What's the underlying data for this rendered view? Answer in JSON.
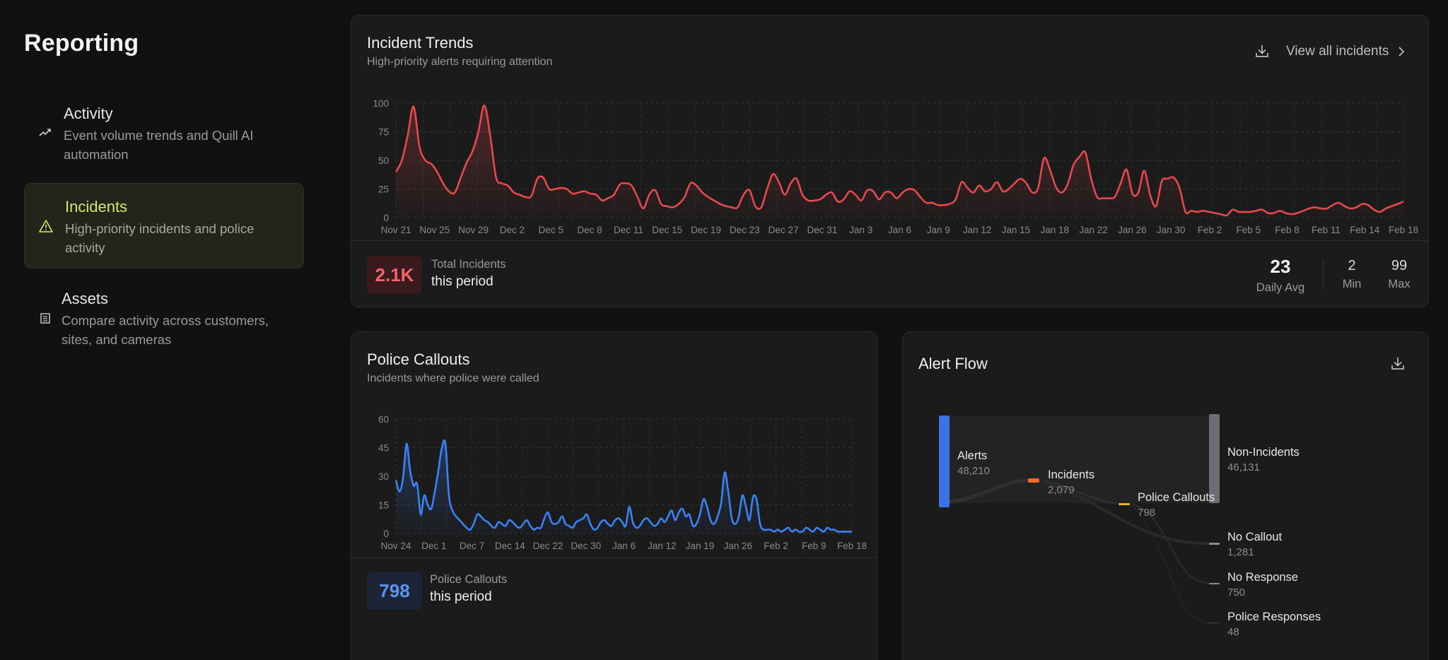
{
  "sidebar": {
    "title": "Reporting",
    "items": [
      {
        "title": "Activity",
        "desc": "Event volume trends and Quill AI automation",
        "icon": "trend-up-icon"
      },
      {
        "title": "Incidents",
        "desc": "High-priority incidents and police activity",
        "icon": "warning-icon",
        "active": true
      },
      {
        "title": "Assets",
        "desc": "Compare activity across customers, sites, and cameras",
        "icon": "building-icon"
      }
    ]
  },
  "incident_trends": {
    "title": "Incident Trends",
    "subtitle": "High-priority alerts requiring attention",
    "view_all": "View all incidents",
    "total_value": "2.1K",
    "total_label": "Total Incidents",
    "total_period": "this period",
    "daily_avg": "23",
    "daily_avg_label": "Daily Avg",
    "min": "2",
    "min_label": "Min",
    "max": "99",
    "max_label": "Max",
    "color": "#e5484d"
  },
  "police_callouts": {
    "title": "Police Callouts",
    "subtitle": "Incidents where police were called",
    "total_value": "798",
    "total_label": "Police Callouts",
    "total_period": "this period",
    "color": "#3b82f6"
  },
  "alert_flow": {
    "title": "Alert Flow",
    "nodes": [
      {
        "label": "Alerts",
        "value": "48,210",
        "color": "#3b73e0"
      },
      {
        "label": "Incidents",
        "value": "2,079",
        "color": "#f06a28"
      },
      {
        "label": "Police Callouts",
        "value": "798",
        "color": "#e6b422"
      },
      {
        "label": "Non-Incidents",
        "value": "46,131",
        "color": "#6b6e75"
      },
      {
        "label": "No Callout",
        "value": "1,281",
        "color": "#8a8a8a"
      },
      {
        "label": "No Response",
        "value": "750",
        "color": "#8a8a8a"
      },
      {
        "label": "Police Responses",
        "value": "48",
        "color": "#555555"
      }
    ]
  },
  "chart_data": [
    {
      "type": "area",
      "title": "Incident Trends",
      "ylim": [
        0,
        100
      ],
      "yticks": [
        0,
        25,
        50,
        75,
        100
      ],
      "xticks": [
        "Nov 21",
        "Nov 25",
        "Nov 29",
        "Dec 2",
        "Dec 5",
        "Dec 8",
        "Dec 11",
        "Dec 15",
        "Dec 19",
        "Dec 23",
        "Dec 27",
        "Dec 31",
        "Jan 3",
        "Jan 6",
        "Jan 9",
        "Jan 12",
        "Jan 15",
        "Jan 18",
        "Jan 22",
        "Jan 26",
        "Jan 30",
        "Feb 2",
        "Feb 5",
        "Feb 8",
        "Feb 11",
        "Feb 14",
        "Feb 18"
      ],
      "grid": true,
      "values": [
        40,
        50,
        72,
        97,
        62,
        50,
        47,
        40,
        30,
        23,
        22,
        35,
        48,
        58,
        75,
        98,
        72,
        35,
        30,
        28,
        22,
        20,
        18,
        19,
        34,
        35,
        25,
        25,
        26,
        25,
        21,
        22,
        23,
        21,
        20,
        15,
        17,
        20,
        29,
        30,
        28,
        18,
        8,
        20,
        24,
        12,
        10,
        9,
        12,
        18,
        30,
        28,
        22,
        18,
        15,
        12,
        10,
        9,
        9,
        20,
        24,
        10,
        9,
        25,
        38,
        31,
        20,
        30,
        34,
        20,
        15,
        15,
        16,
        20,
        22,
        14,
        16,
        23,
        20,
        15,
        24,
        23,
        16,
        22,
        22,
        17,
        22,
        25,
        24,
        18,
        13,
        13,
        11,
        11,
        12,
        16,
        31,
        26,
        22,
        28,
        23,
        25,
        31,
        23,
        25,
        30,
        34,
        30,
        22,
        26,
        52,
        42,
        27,
        22,
        29,
        46,
        53,
        57,
        34,
        18,
        17,
        17,
        18,
        30,
        42,
        21,
        22,
        41,
        20,
        10,
        32,
        34,
        35,
        26,
        5,
        6,
        5,
        6,
        5,
        4,
        3,
        2,
        7,
        5,
        5,
        5,
        6,
        7,
        4,
        4,
        6,
        4,
        3,
        4,
        6,
        8,
        9,
        8,
        8,
        11,
        13,
        10,
        8,
        9,
        12,
        11,
        7,
        5,
        8,
        10,
        12,
        14
      ]
    },
    {
      "type": "area",
      "title": "Police Callouts",
      "ylim": [
        0,
        60
      ],
      "yticks": [
        0,
        15,
        30,
        45,
        60
      ],
      "xticks": [
        "Nov 24",
        "Dec 1",
        "Dec 7",
        "Dec 14",
        "Dec 22",
        "Dec 30",
        "Jan 6",
        "Jan 12",
        "Jan 19",
        "Jan 26",
        "Feb 2",
        "Feb 9",
        "Feb 18"
      ],
      "grid": true,
      "values": [
        28,
        22,
        29,
        47,
        33,
        25,
        26,
        10,
        20,
        15,
        13,
        22,
        33,
        45,
        47,
        20,
        12,
        9,
        7,
        5,
        3,
        2,
        5,
        10,
        9,
        7,
        6,
        4,
        3,
        6,
        5,
        4,
        7,
        6,
        4,
        3,
        5,
        7,
        4,
        2,
        3,
        3,
        8,
        11,
        6,
        5,
        6,
        9,
        5,
        4,
        3,
        6,
        7,
        8,
        10,
        5,
        2,
        3,
        6,
        7,
        5,
        4,
        7,
        8,
        6,
        4,
        14,
        6,
        3,
        4,
        7,
        8,
        6,
        4,
        5,
        8,
        6,
        9,
        12,
        7,
        11,
        13,
        9,
        10,
        4,
        5,
        10,
        18,
        14,
        7,
        5,
        9,
        16,
        32,
        22,
        8,
        5,
        9,
        20,
        14,
        7,
        19,
        18,
        5,
        2,
        2,
        2,
        1,
        2,
        1,
        2,
        3,
        1,
        2,
        1,
        1,
        3,
        2,
        1,
        3,
        2,
        1,
        3,
        2,
        2,
        1,
        1,
        1,
        1,
        1
      ]
    },
    {
      "type": "sankey",
      "title": "Alert Flow",
      "links": [
        {
          "source": "Alerts",
          "target": "Incidents",
          "value": 2079
        },
        {
          "source": "Alerts",
          "target": "Non-Incidents",
          "value": 46131
        },
        {
          "source": "Incidents",
          "target": "Police Callouts",
          "value": 798
        },
        {
          "source": "Incidents",
          "target": "No Callout",
          "value": 1281
        },
        {
          "source": "Police Callouts",
          "target": "No Response",
          "value": 750
        },
        {
          "source": "Police Callouts",
          "target": "Police Responses",
          "value": 48
        }
      ]
    }
  ]
}
